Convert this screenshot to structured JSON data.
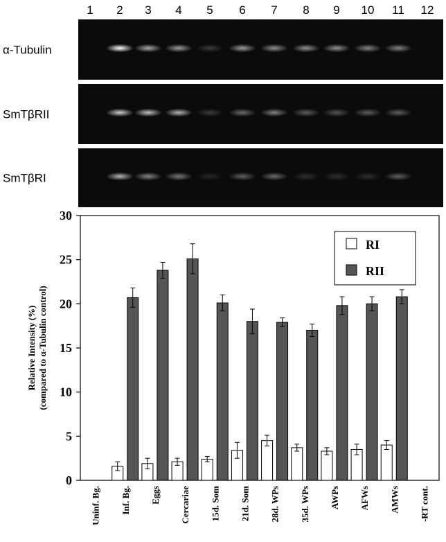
{
  "gel": {
    "lane_numbers": [
      "1",
      "2",
      "3",
      "4",
      "5",
      "6",
      "7",
      "8",
      "9",
      "10",
      "11",
      "12"
    ],
    "panels": [
      {
        "label": "α-Tubulin",
        "band_intensity": [
          0,
          1.0,
          0.65,
          0.6,
          0.2,
          0.6,
          0.55,
          0.55,
          0.55,
          0.5,
          0.5,
          0
        ]
      },
      {
        "label": "SmTβRII",
        "band_intensity": [
          0,
          0.8,
          0.75,
          0.7,
          0.2,
          0.4,
          0.5,
          0.35,
          0.3,
          0.35,
          0.35,
          0
        ]
      },
      {
        "label": "SmTβRI",
        "band_intensity": [
          0,
          0.7,
          0.5,
          0.45,
          0.12,
          0.35,
          0.4,
          0.15,
          0.15,
          0.15,
          0.35,
          0
        ]
      }
    ]
  },
  "chart_data": {
    "type": "bar",
    "title": "",
    "xlabel": "",
    "ylabel_line1": "Relative Intensity (%)",
    "ylabel_line2": "(compared to α-Tubulin control)",
    "ylim": [
      0,
      30
    ],
    "yticks": [
      "0",
      "5",
      "10",
      "15",
      "20",
      "25",
      "30"
    ],
    "categories": [
      "Uninf. Bg.",
      "Inf. Bg.",
      "Eggs",
      "Cercariae",
      "15d. Som",
      "21d. Som",
      "28d. WPs",
      "35d. WPs",
      "AWPs",
      "AFWs",
      "AMWs",
      "-RT cont."
    ],
    "series": [
      {
        "name": "RI",
        "color": "#ffffff",
        "values": [
          0,
          1.6,
          1.9,
          2.1,
          2.4,
          3.4,
          4.5,
          3.7,
          3.3,
          3.5,
          4.0,
          0
        ],
        "errors": [
          0,
          0.5,
          0.6,
          0.4,
          0.3,
          0.9,
          0.6,
          0.4,
          0.4,
          0.6,
          0.5,
          0
        ]
      },
      {
        "name": "RII",
        "color": "#555555",
        "values": [
          0,
          20.7,
          23.8,
          25.1,
          20.1,
          18.0,
          17.9,
          17.0,
          19.8,
          20.0,
          20.8,
          0
        ],
        "errors": [
          0,
          1.1,
          0.9,
          1.7,
          0.9,
          1.4,
          0.5,
          0.7,
          1.0,
          0.8,
          0.8,
          0
        ]
      }
    ],
    "legend_position": "top-right",
    "grid": false
  }
}
